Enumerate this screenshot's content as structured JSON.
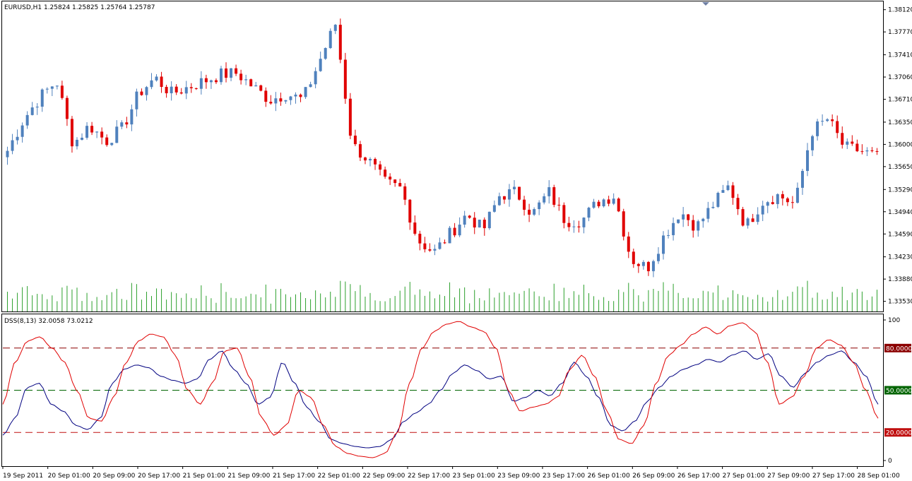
{
  "header": {
    "main_label": "EURUSD,H1  1.25824 1.25825 1.25764 1.25787",
    "indicator_label": "DSS(8,13) 32.0058 73.0212"
  },
  "colors": {
    "bull": "#4f81bd",
    "bear": "#e00000",
    "volume": "#2ca02c",
    "dss_blue": "#000080",
    "dss_red": "#e00000",
    "level80": "#8b0000",
    "level50": "#006400",
    "level20": "#c01010"
  },
  "chart_data": [
    {
      "type": "candlestick",
      "title": "EURUSD,H1",
      "ylim": [
        1.3337,
        1.3825
      ],
      "y_ticks": [
        "1.38120",
        "1.37770",
        "1.37410",
        "1.37060",
        "1.36710",
        "1.36350",
        "1.36000",
        "1.35650",
        "1.35290",
        "1.34940",
        "1.34590",
        "1.34230",
        "1.33880",
        "1.33530"
      ],
      "x_ticks": [
        "19 Sep 2011",
        "20 Sep 01:00",
        "20 Sep 09:00",
        "20 Sep 17:00",
        "21 Sep 01:00",
        "21 Sep 09:00",
        "21 Sep 17:00",
        "22 Sep 01:00",
        "22 Sep 09:00",
        "22 Sep 17:00",
        "23 Sep 01:00",
        "23 Sep 09:00",
        "23 Sep 17:00",
        "26 Sep 01:00",
        "26 Sep 09:00",
        "26 Sep 17:00",
        "27 Sep 01:00",
        "27 Sep 09:00",
        "27 Sep 17:00",
        "28 Sep 01:00"
      ],
      "close_anchor_path": [
        1.359,
        1.364,
        1.3675,
        1.37,
        1.36,
        1.363,
        1.3605,
        1.3625,
        1.368,
        1.3705,
        1.368,
        1.369,
        1.37,
        1.371,
        1.3712,
        1.369,
        1.367,
        1.368,
        1.367,
        1.373,
        1.379,
        1.36,
        1.3575,
        1.354,
        1.353,
        1.345,
        1.343,
        1.346,
        1.349,
        1.3465,
        1.352,
        1.3525,
        1.349,
        1.3525,
        1.348,
        1.348,
        1.351,
        1.352,
        1.342,
        1.3405,
        1.3455,
        1.3495,
        1.347,
        1.3505,
        1.3535,
        1.347,
        1.351,
        1.352,
        1.3505,
        1.362,
        1.364,
        1.3595,
        1.359,
        1.358
      ],
      "volume": {
        "name": "Volume",
        "note": "pattern of tick volume bars along the bottom of the price panel",
        "max_shown": 1.0
      }
    },
    {
      "type": "line",
      "title": "DSS(8,13)",
      "ylim": [
        0,
        100
      ],
      "y_ticks": [
        "100",
        "0"
      ],
      "levels": [
        80,
        50,
        20
      ],
      "level_labels": [
        "80.0000",
        "50.0000",
        "20.0000"
      ],
      "series": [
        {
          "name": "",
          "values": [
            18,
            30,
            52,
            55,
            40,
            35,
            25,
            22,
            30,
            55,
            65,
            68,
            66,
            60,
            57,
            55,
            58,
            72,
            78,
            65,
            55,
            40,
            45,
            70,
            55,
            38,
            28,
            15,
            12,
            10,
            9,
            10,
            15,
            28,
            34,
            40,
            50,
            62,
            68,
            64,
            58,
            60,
            42,
            45,
            50,
            46,
            55,
            70,
            60,
            45,
            25,
            21,
            28,
            42,
            52,
            60,
            65,
            68,
            72,
            70,
            75,
            78,
            72,
            76,
            60,
            52,
            62,
            70,
            75,
            78,
            70,
            60,
            40
          ]
        },
        {
          "name": "",
          "values": [
            40,
            70,
            85,
            88,
            80,
            70,
            50,
            30,
            28,
            45,
            70,
            85,
            90,
            88,
            75,
            50,
            40,
            55,
            78,
            80,
            60,
            30,
            18,
            25,
            50,
            45,
            25,
            10,
            5,
            3,
            2,
            5,
            20,
            55,
            80,
            92,
            97,
            99,
            95,
            92,
            80,
            50,
            35,
            38,
            40,
            45,
            65,
            75,
            60,
            35,
            15,
            12,
            25,
            55,
            75,
            82,
            90,
            95,
            90,
            96,
            98,
            92,
            70,
            40,
            45,
            60,
            80,
            86,
            82,
            70,
            50,
            30
          ]
        }
      ]
    }
  ]
}
